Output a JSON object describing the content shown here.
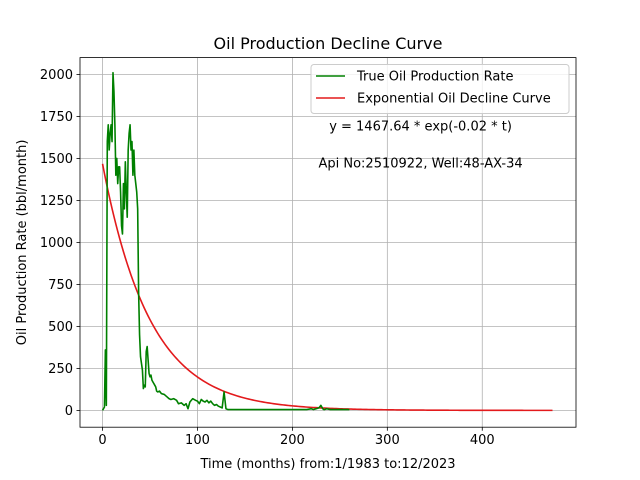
{
  "chart_data": {
    "type": "line",
    "title": "Oil Production Decline Curve",
    "xlabel": "Time (months) from:1/1983 to:12/2023",
    "ylabel": "Oil Production Rate (bbl/month)",
    "xlim": [
      -23.75,
      498.75
    ],
    "ylim": [
      -100,
      2100
    ],
    "xticks": [
      0,
      100,
      200,
      300,
      400
    ],
    "yticks": [
      0,
      250,
      500,
      750,
      1000,
      1250,
      1500,
      1750,
      2000
    ],
    "grid": true,
    "legend_position": "top-right",
    "annotations": [
      {
        "text": "y = 1467.64 * exp(-0.02 * t)",
        "x": 335,
        "y": 1665
      },
      {
        "text": "Api No:2510922, Well:48-AX-34",
        "x": 335,
        "y": 1445
      }
    ],
    "series": [
      {
        "name": "True Oil Production Rate",
        "color": "#008000",
        "x": [
          0,
          2,
          3,
          4,
          5,
          6,
          7,
          8,
          9,
          10,
          11,
          12,
          13,
          14,
          15,
          16,
          17,
          18,
          19,
          20,
          21,
          22,
          23,
          24,
          25,
          26,
          27,
          28,
          29,
          30,
          31,
          32,
          33,
          34,
          35,
          36,
          37,
          38,
          39,
          40,
          41,
          42,
          43,
          44,
          45,
          46,
          47,
          48,
          49,
          50,
          51,
          52,
          53,
          54,
          55,
          56,
          57,
          58,
          60,
          62,
          65,
          68,
          70,
          72,
          75,
          78,
          80,
          83,
          86,
          88,
          90,
          92,
          95,
          98,
          100,
          102,
          104,
          106,
          108,
          110,
          112,
          114,
          116,
          118,
          120,
          122,
          124,
          126,
          128,
          130,
          132,
          134,
          135,
          136,
          137,
          138,
          140,
          150,
          160,
          170,
          180,
          190,
          200,
          210,
          215,
          220,
          222,
          225,
          228,
          230,
          232,
          233,
          234,
          236,
          240,
          250,
          260
        ],
        "y": [
          0,
          20,
          360,
          30,
          1600,
          1700,
          1550,
          1650,
          1700,
          1600,
          2010,
          1900,
          1700,
          1400,
          1500,
          1350,
          1450,
          1450,
          1300,
          1100,
          1050,
          1350,
          1200,
          1480,
          1300,
          1150,
          1550,
          1650,
          1700,
          1550,
          1600,
          1400,
          1550,
          1400,
          1350,
          1300,
          1200,
          700,
          450,
          320,
          280,
          240,
          130,
          150,
          140,
          350,
          380,
          300,
          220,
          200,
          210,
          180,
          170,
          160,
          150,
          140,
          115,
          110,
          115,
          100,
          95,
          80,
          70,
          65,
          70,
          60,
          40,
          45,
          30,
          40,
          10,
          50,
          70,
          60,
          55,
          40,
          65,
          55,
          50,
          60,
          45,
          55,
          40,
          30,
          35,
          25,
          20,
          15,
          110,
          10,
          5,
          5,
          5,
          5,
          5,
          5,
          5,
          5,
          5,
          5,
          5,
          5,
          5,
          5,
          5,
          10,
          5,
          10,
          15,
          30,
          10,
          5,
          5,
          10,
          5,
          5,
          5
        ]
      },
      {
        "name": "Exponential Oil Decline Curve",
        "color": "#e31a1c",
        "formula": {
          "a": 1467.64,
          "b": 0.02
        },
        "x_range": [
          0,
          475
        ]
      }
    ]
  }
}
